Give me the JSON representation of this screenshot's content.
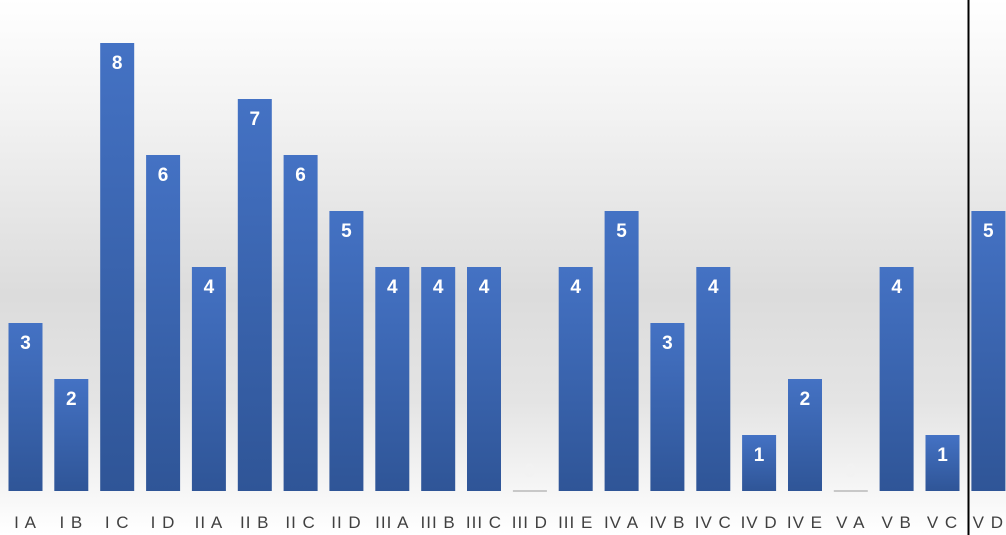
{
  "chart_data": {
    "type": "bar",
    "categories": [
      "I A",
      "I B",
      "I C",
      "I D",
      "II A",
      "II B",
      "II C",
      "II D",
      "III A",
      "III B",
      "III C",
      "III D",
      "III E",
      "IV A",
      "IV B",
      "IV C",
      "IV D",
      "IV E",
      "V A",
      "V B",
      "V C",
      "V D"
    ],
    "values": [
      3,
      2,
      8,
      6,
      4,
      7,
      6,
      5,
      4,
      4,
      4,
      0,
      4,
      5,
      3,
      4,
      1,
      2,
      0,
      4,
      1,
      5
    ],
    "ylim": [
      0,
      8
    ],
    "grid": false,
    "legend": "none",
    "data_labels": true,
    "colors": {
      "bar_top": "#4472c4",
      "bar_bottom": "#2f5597",
      "zero_bar": "#c8c8c8",
      "label_text": "#ffffff",
      "zero_label_text": "#f2f2f2",
      "category_text": "#404040"
    }
  }
}
